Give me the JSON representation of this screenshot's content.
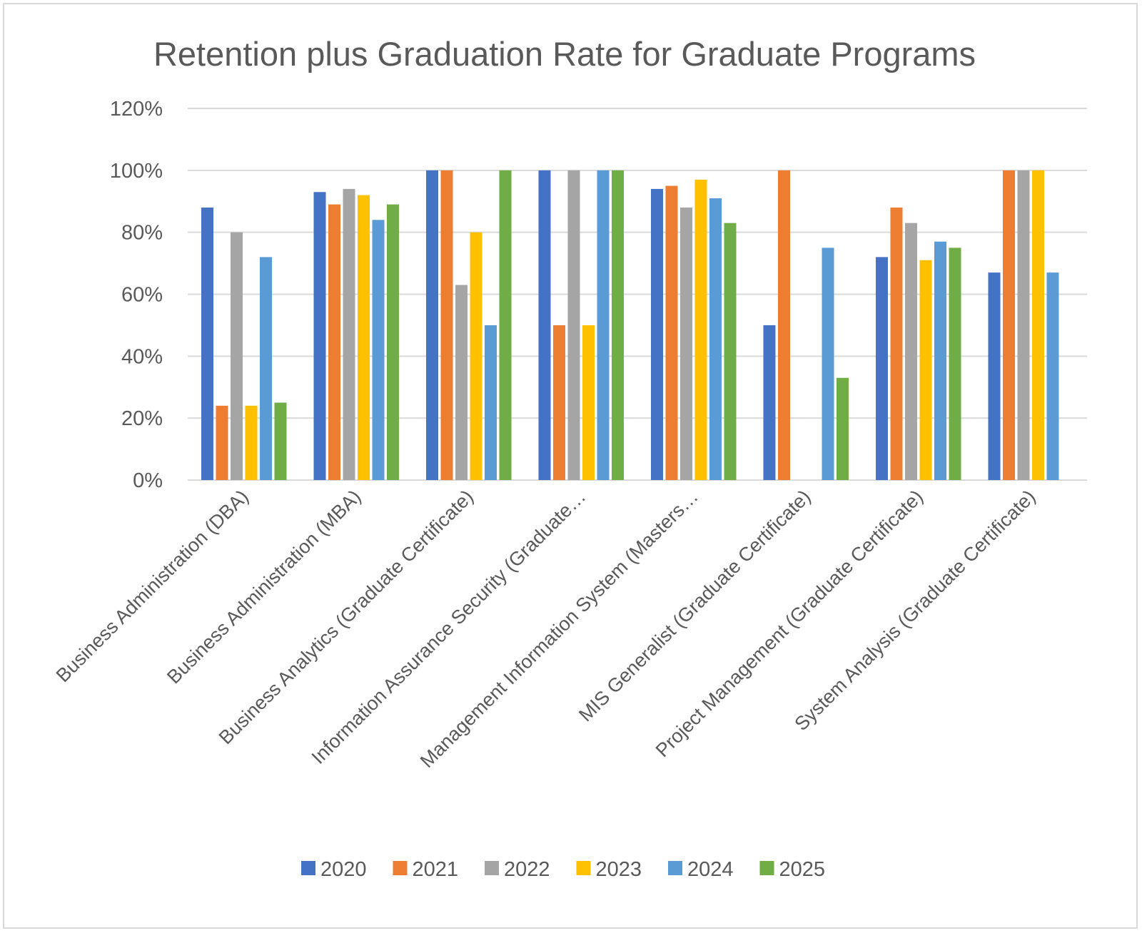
{
  "chart_data": {
    "type": "bar",
    "title": "Retention plus Graduation Rate for Graduate Programs",
    "xlabel": "",
    "ylabel": "",
    "ylim": [
      0,
      1.2
    ],
    "yticks": [
      "0%",
      "20%",
      "40%",
      "60%",
      "80%",
      "100%",
      "120%"
    ],
    "grid": true,
    "legend_position": "bottom",
    "categories": [
      "Business Administration (DBA)",
      "Business Administration (MBA)",
      "Business Analytics (Graduate Certificate)",
      "Information Assurance Security (Graduate…",
      "Management Information System (Masters…",
      "MIS Generalist (Graduate Certificate)",
      "Project Management (Graduate Certificate)",
      "System Analysis (Graduate Certificate)"
    ],
    "series": [
      {
        "name": "2020",
        "color": "#4472c4",
        "values": [
          0.88,
          0.93,
          1.0,
          1.0,
          0.94,
          0.5,
          0.72,
          0.67
        ]
      },
      {
        "name": "2021",
        "color": "#ed7d31",
        "values": [
          0.24,
          0.89,
          1.0,
          0.5,
          0.95,
          1.0,
          0.88,
          1.0
        ]
      },
      {
        "name": "2022",
        "color": "#a5a5a5",
        "values": [
          0.8,
          0.94,
          0.63,
          1.0,
          0.88,
          null,
          0.83,
          1.0
        ]
      },
      {
        "name": "2023",
        "color": "#ffc000",
        "values": [
          0.24,
          0.92,
          0.8,
          0.5,
          0.97,
          null,
          0.71,
          1.0
        ]
      },
      {
        "name": "2024",
        "color": "#5b9bd5",
        "values": [
          0.72,
          0.84,
          0.5,
          1.0,
          0.91,
          0.75,
          0.77,
          0.67
        ]
      },
      {
        "name": "2025",
        "color": "#70ad47",
        "values": [
          0.25,
          0.89,
          1.0,
          1.0,
          0.83,
          0.33,
          0.75,
          null
        ]
      }
    ]
  }
}
